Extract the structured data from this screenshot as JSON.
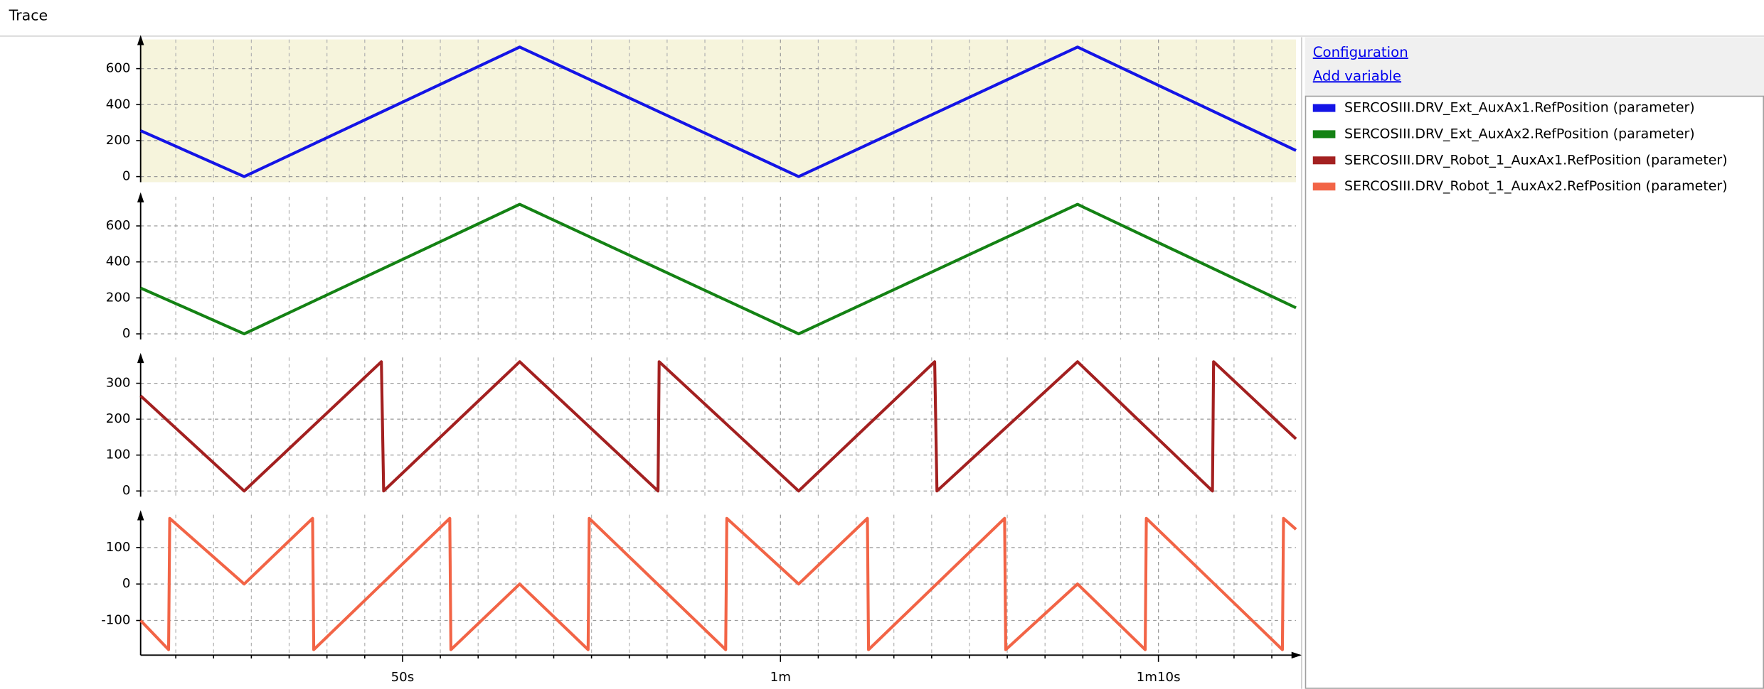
{
  "header": {
    "title": "Trace"
  },
  "links": [
    "Configuration",
    "Add variable"
  ],
  "chart_data": [
    {
      "type": "line",
      "background": "#f6f4dc",
      "xlim": [
        43.07,
        73.64
      ],
      "ylim": [
        -31,
        762
      ],
      "yticks": [
        0,
        200,
        400,
        600
      ],
      "grid": true,
      "x": [
        43.07,
        45.81,
        53.1,
        60.48,
        67.86,
        73.64
      ],
      "series": [
        {
          "name": "SERCOSIII.DRV_Ext_AuxAx1.RefPosition (parameter)",
          "color": "#1414e6",
          "values": [
            255,
            0,
            720,
            0,
            720,
            145
          ]
        }
      ]
    },
    {
      "type": "line",
      "background": "#ffffff",
      "xlim": [
        43.07,
        73.64
      ],
      "ylim": [
        -31,
        762
      ],
      "yticks": [
        0,
        200,
        400,
        600
      ],
      "grid": true,
      "x": [
        43.07,
        45.81,
        53.1,
        60.48,
        67.86,
        73.64
      ],
      "series": [
        {
          "name": "SERCOSIII.DRV_Ext_AuxAx2.RefPosition (parameter)",
          "color": "#148214",
          "values": [
            255,
            0,
            720,
            0,
            720,
            145
          ]
        }
      ]
    },
    {
      "type": "line",
      "background": "#ffffff",
      "xlim": [
        43.07,
        73.64
      ],
      "ylim": [
        -16,
        372
      ],
      "yticks": [
        0,
        100,
        200,
        300
      ],
      "grid": true,
      "x": [
        43.07,
        45.81,
        49.44,
        49.5,
        53.1,
        56.76,
        56.79,
        60.48,
        64.08,
        64.14,
        67.86,
        71.43,
        71.46,
        73.64
      ],
      "series": [
        {
          "name": "SERCOSIII.DRV_Robot_1_AuxAx1.RefPosition (parameter)",
          "color": "#a32020",
          "values": [
            265,
            0,
            360,
            0,
            360,
            0,
            360,
            0,
            360,
            0,
            360,
            0,
            360,
            145
          ]
        }
      ]
    },
    {
      "type": "line",
      "background": "#ffffff",
      "xlim": [
        43.07,
        73.64
      ],
      "ylim": [
        -195,
        190
      ],
      "yticks": [
        -100,
        0,
        100
      ],
      "grid": true,
      "xticks": [
        {
          "value": 50,
          "label": "50s"
        },
        {
          "value": 60,
          "label": "1m"
        },
        {
          "value": 70,
          "label": "1m10s"
        }
      ],
      "xminorticks": [
        44,
        45,
        46,
        47,
        48,
        49,
        51,
        52,
        53,
        54,
        55,
        56,
        57,
        58,
        59,
        61,
        62,
        63,
        64,
        65,
        66,
        67,
        68,
        69,
        71,
        72,
        73
      ],
      "x": [
        43.07,
        43.81,
        43.84,
        45.81,
        47.62,
        47.65,
        51.25,
        51.28,
        53.1,
        54.91,
        54.94,
        58.55,
        58.58,
        60.48,
        62.3,
        62.33,
        65.93,
        65.96,
        67.86,
        69.65,
        69.68,
        73.28,
        73.31,
        73.64
      ],
      "series": [
        {
          "name": "SERCOSIII.DRV_Robot_1_AuxAx2.RefPosition (parameter)",
          "color": "#f26446",
          "values": [
            -100,
            -180,
            180,
            0,
            180,
            -180,
            180,
            -180,
            0,
            -180,
            180,
            -180,
            180,
            0,
            180,
            -180,
            180,
            -180,
            0,
            -180,
            180,
            -180,
            180,
            150
          ]
        }
      ]
    }
  ]
}
